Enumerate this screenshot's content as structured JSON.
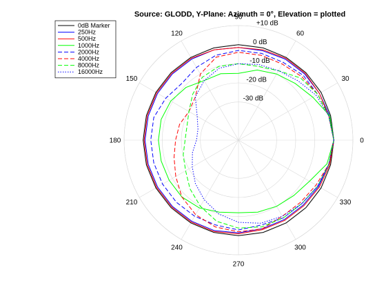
{
  "chart_data": {
    "type": "polar-line",
    "title": "Source: GLODD, Y-Plane: Azimuth = 0°, Elevation = plotted",
    "angle_unit": "degrees",
    "angle_ticks": [
      0,
      30,
      60,
      90,
      120,
      150,
      180,
      210,
      240,
      270,
      300,
      330
    ],
    "angle_tick_labels": [
      "0",
      "30",
      "60",
      "90",
      "120",
      "150",
      "180",
      "210",
      "240",
      "270",
      "300",
      "330"
    ],
    "radial_unit": "dB",
    "r_range": [
      -50,
      10
    ],
    "radial_ticks": [
      10,
      0,
      -10,
      -20,
      -30
    ],
    "radial_tick_labels": [
      "+10 dB",
      "0 dB",
      "-10 dB",
      "-20 dB",
      "-30 dB"
    ],
    "radial_label_angle": 80,
    "grid": true,
    "legend_position": "top-left",
    "angles": [
      0,
      15,
      30,
      45,
      60,
      75,
      90,
      105,
      120,
      135,
      150,
      165,
      180,
      195,
      210,
      225,
      240,
      255,
      270,
      285,
      300,
      315,
      330,
      345,
      360
    ],
    "series": [
      {
        "name": "0dB Marker",
        "color": "#000000",
        "dash": "solid",
        "values": [
          0,
          0,
          0,
          0,
          0,
          0,
          0,
          0,
          0,
          0,
          0,
          0,
          0,
          0,
          0,
          0,
          0,
          0,
          0,
          0,
          0,
          0,
          0,
          0,
          0
        ]
      },
      {
        "name": "250Hz",
        "color": "#0000ff",
        "dash": "solid",
        "values": [
          0,
          -0.5,
          -1,
          -1,
          -1,
          -1.5,
          -1.5,
          -1,
          -1,
          -1,
          -1,
          -1,
          -1,
          -1,
          -1,
          -1,
          -1,
          -1,
          -1.5,
          -2,
          -2,
          -2,
          -1.5,
          -1,
          0
        ]
      },
      {
        "name": "500Hz",
        "color": "#ff0000",
        "dash": "solid",
        "values": [
          0,
          -1,
          -1,
          -0.5,
          -0.5,
          -1,
          -1.5,
          -1,
          -0.5,
          -0.5,
          -0.5,
          -0.5,
          -0.5,
          -0.5,
          -0.5,
          -0.5,
          -0.5,
          -0.5,
          -1,
          -1.5,
          -1.5,
          -1.5,
          -1,
          -0.5,
          0
        ]
      },
      {
        "name": "1000Hz",
        "color": "#00ff00",
        "dash": "solid",
        "values": [
          0,
          -0.5,
          -5,
          -8,
          -10,
          -12,
          -15,
          -14,
          -14,
          -11,
          -9,
          -8,
          -8,
          -8,
          -8,
          -8,
          -9,
          -11,
          -12,
          -11,
          -10,
          -9,
          -7,
          -2,
          0
        ]
      },
      {
        "name": "2000Hz",
        "color": "#0000ff",
        "dash": "dash",
        "values": [
          0,
          -1,
          -2,
          -2,
          -3,
          -3,
          -3,
          -4,
          -6,
          -8,
          -6,
          -4,
          -4,
          -4,
          -4,
          -4,
          -4,
          -4,
          -3,
          -4,
          -3,
          -3,
          -2,
          -1,
          0
        ]
      },
      {
        "name": "4000Hz",
        "color": "#ff0000",
        "dash": "dash",
        "values": [
          0,
          -1,
          -2,
          -3,
          -4,
          -4,
          -4,
          -5,
          -10,
          -18,
          -20,
          -18,
          -17,
          -15,
          -12,
          -8,
          -5,
          -3,
          -2,
          -2,
          -4,
          -4,
          -3,
          -1,
          0
        ]
      },
      {
        "name": "8000Hz",
        "color": "#00ff00",
        "dash": "dash",
        "values": [
          0,
          -1,
          -2,
          -4,
          -8,
          -10,
          -10,
          -10,
          -12,
          -16,
          -20,
          -22,
          -22,
          -20,
          -18,
          -14,
          -10,
          -6,
          -4,
          -3,
          -3,
          -3,
          -2,
          -1,
          0
        ]
      },
      {
        "name": "16000Hz",
        "color": "#0000ff",
        "dash": "dot",
        "values": [
          0,
          -1,
          -3,
          -6,
          -8,
          -9,
          -10,
          -11,
          -14,
          -18,
          -25,
          -28,
          -28,
          -25,
          -22,
          -18,
          -14,
          -10,
          -7,
          -5,
          -4,
          -3,
          -2,
          -1,
          0
        ]
      }
    ]
  }
}
